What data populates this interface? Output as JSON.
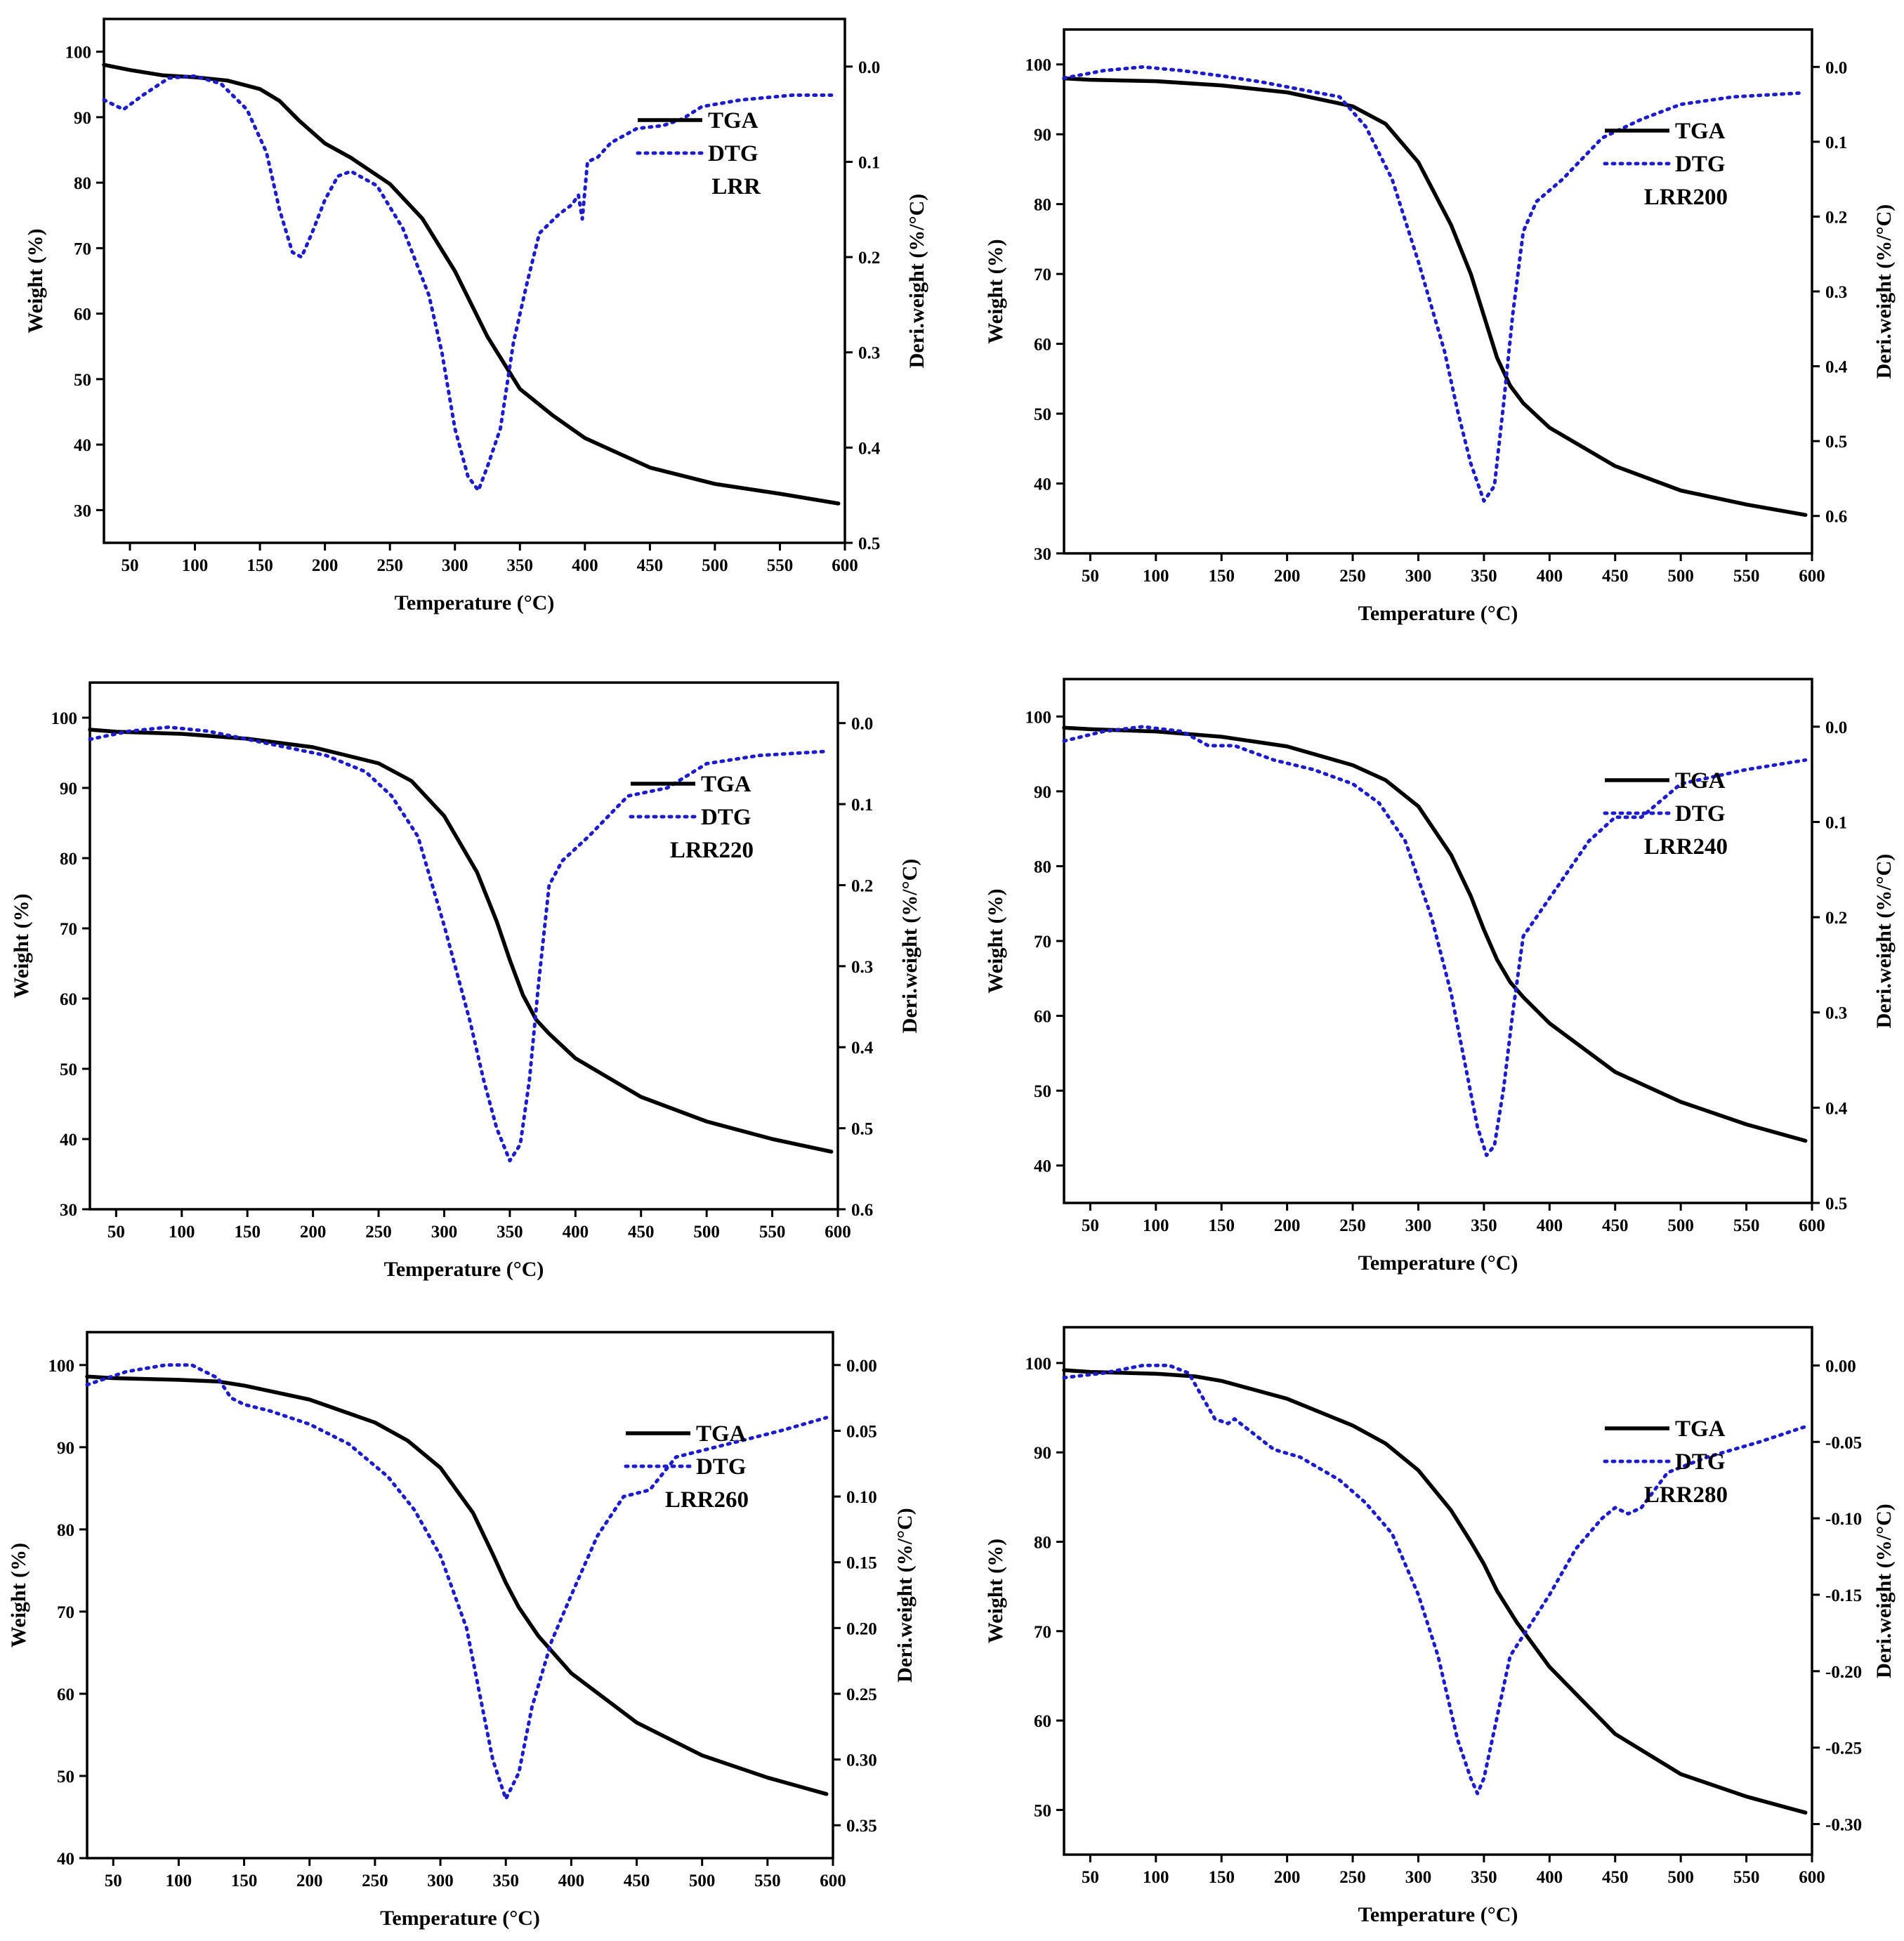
{
  "colors": {
    "tga": "#000000",
    "dtg": "#1c1ccc",
    "axis": "#000000"
  },
  "chart_data": [
    {
      "type": "line",
      "sample": "LRR",
      "xlabel": "Temperature (°C)",
      "ylabel": "Weight (%)",
      "y2label": "Deri.weight (%/°C)",
      "xlim": [
        30,
        600
      ],
      "ylim": [
        25,
        105
      ],
      "y2lim": [
        0.5,
        -0.05
      ],
      "xticks": [
        50,
        100,
        150,
        200,
        250,
        300,
        350,
        400,
        450,
        500,
        550,
        600
      ],
      "yticks": [
        30,
        40,
        50,
        60,
        70,
        80,
        90,
        100
      ],
      "y2ticks": [
        0.0,
        0.1,
        0.2,
        0.3,
        0.4,
        0.5
      ],
      "y2tick_labels": [
        "0.0",
        "0.1",
        "0.2",
        "0.3",
        "0.4",
        "0.5"
      ],
      "legend": {
        "tga": "TGA",
        "dtg": "DTG",
        "sample_label": "LRR",
        "position": "top-right"
      },
      "series": [
        {
          "name": "TGA",
          "axis": "left",
          "style": "solid",
          "x": [
            30,
            50,
            75,
            100,
            125,
            150,
            165,
            180,
            200,
            220,
            250,
            275,
            300,
            325,
            350,
            375,
            400,
            450,
            500,
            550,
            595
          ],
          "y": [
            98,
            97.2,
            96.4,
            96.1,
            95.6,
            94.3,
            92.5,
            89.5,
            86,
            83.8,
            79.8,
            74.5,
            66.5,
            56.5,
            48.5,
            44.5,
            41,
            36.5,
            34,
            32.5,
            31
          ]
        },
        {
          "name": "DTG",
          "axis": "right",
          "style": "dotted",
          "x": [
            30,
            45,
            60,
            80,
            100,
            120,
            140,
            155,
            165,
            175,
            182,
            190,
            200,
            210,
            220,
            240,
            260,
            280,
            290,
            300,
            310,
            318,
            325,
            335,
            345,
            355,
            365,
            380,
            390,
            395,
            398,
            402,
            410,
            420,
            440,
            460,
            475,
            490,
            520,
            560,
            590
          ],
          "y": [
            0.035,
            0.045,
            0.03,
            0.012,
            0.01,
            0.018,
            0.045,
            0.09,
            0.15,
            0.195,
            0.2,
            0.175,
            0.14,
            0.115,
            0.11,
            0.125,
            0.17,
            0.24,
            0.3,
            0.38,
            0.43,
            0.445,
            0.42,
            0.38,
            0.29,
            0.23,
            0.175,
            0.155,
            0.145,
            0.135,
            0.16,
            0.1,
            0.095,
            0.08,
            0.065,
            0.062,
            0.055,
            0.042,
            0.035,
            0.03,
            0.03
          ]
        }
      ]
    },
    {
      "type": "line",
      "sample": "LRR200",
      "xlabel": "Temperature (°C)",
      "ylabel": "Weight (%)",
      "y2label": "Deri.weight (%/°C)",
      "xlim": [
        30,
        600
      ],
      "ylim": [
        30,
        105
      ],
      "y2lim": [
        0.65,
        -0.05
      ],
      "xticks": [
        50,
        100,
        150,
        200,
        250,
        300,
        350,
        400,
        450,
        500,
        550,
        600
      ],
      "yticks": [
        30,
        40,
        50,
        60,
        70,
        80,
        90,
        100
      ],
      "y2ticks": [
        0.0,
        0.1,
        0.2,
        0.3,
        0.4,
        0.5,
        0.6
      ],
      "y2tick_labels": [
        "0.0",
        "0.1",
        "0.2",
        "0.3",
        "0.4",
        "0.5",
        "0.6"
      ],
      "legend": {
        "tga": "TGA",
        "dtg": "DTG",
        "sample_label": "LRR200",
        "position": "top-right"
      },
      "series": [
        {
          "name": "TGA",
          "axis": "left",
          "style": "solid",
          "x": [
            30,
            50,
            100,
            150,
            200,
            250,
            275,
            300,
            325,
            340,
            350,
            360,
            370,
            380,
            400,
            450,
            500,
            550,
            595
          ],
          "y": [
            98,
            97.8,
            97.6,
            97,
            96,
            94,
            91.5,
            86,
            77,
            70,
            64,
            58,
            54,
            51.5,
            48,
            42.5,
            39,
            37,
            35.5
          ]
        },
        {
          "name": "DTG",
          "axis": "right",
          "style": "dotted",
          "x": [
            30,
            60,
            90,
            120,
            150,
            180,
            210,
            240,
            260,
            280,
            300,
            320,
            330,
            340,
            350,
            358,
            365,
            372,
            380,
            390,
            410,
            440,
            470,
            500,
            540,
            590
          ],
          "y": [
            0.015,
            0.005,
            0,
            0.005,
            0.012,
            0.02,
            0.03,
            0.04,
            0.08,
            0.15,
            0.26,
            0.38,
            0.46,
            0.53,
            0.58,
            0.56,
            0.45,
            0.33,
            0.22,
            0.18,
            0.15,
            0.095,
            0.07,
            0.05,
            0.04,
            0.035
          ]
        }
      ]
    },
    {
      "type": "line",
      "sample": "LRR220",
      "xlabel": "Temperature (°C)",
      "ylabel": "Weight (%)",
      "y2label": "Deri.weight (%/°C)",
      "xlim": [
        30,
        600
      ],
      "ylim": [
        30,
        105
      ],
      "y2lim": [
        0.6,
        -0.05
      ],
      "xticks": [
        50,
        100,
        150,
        200,
        250,
        300,
        350,
        400,
        450,
        500,
        550,
        600
      ],
      "yticks": [
        30,
        40,
        50,
        60,
        70,
        80,
        90,
        100
      ],
      "y2ticks": [
        0.0,
        0.1,
        0.2,
        0.3,
        0.4,
        0.5,
        0.6
      ],
      "y2tick_labels": [
        "0.0",
        "0.1",
        "0.2",
        "0.3",
        "0.4",
        "0.5",
        "0.6"
      ],
      "legend": {
        "tga": "TGA",
        "dtg": "DTG",
        "sample_label": "LRR220",
        "position": "top-right"
      },
      "series": [
        {
          "name": "TGA",
          "axis": "left",
          "style": "solid",
          "x": [
            30,
            50,
            100,
            150,
            200,
            250,
            275,
            300,
            325,
            340,
            350,
            360,
            370,
            380,
            400,
            450,
            500,
            550,
            595
          ],
          "y": [
            98.3,
            98,
            97.7,
            97,
            95.8,
            93.5,
            91,
            86,
            78,
            71,
            65.5,
            60.5,
            57,
            55,
            51.5,
            46,
            42.5,
            40,
            38.2
          ]
        },
        {
          "name": "DTG",
          "axis": "right",
          "style": "dotted",
          "x": [
            30,
            60,
            90,
            120,
            150,
            180,
            210,
            240,
            260,
            280,
            300,
            320,
            330,
            340,
            350,
            358,
            365,
            372,
            380,
            390,
            410,
            440,
            470,
            500,
            540,
            590
          ],
          "y": [
            0.02,
            0.01,
            0.005,
            0.01,
            0.02,
            0.03,
            0.04,
            0.06,
            0.09,
            0.14,
            0.25,
            0.37,
            0.44,
            0.5,
            0.54,
            0.52,
            0.44,
            0.32,
            0.2,
            0.17,
            0.14,
            0.09,
            0.08,
            0.05,
            0.04,
            0.035
          ]
        }
      ]
    },
    {
      "type": "line",
      "sample": "LRR240",
      "xlabel": "Temperature (°C)",
      "ylabel": "Weight (%)",
      "y2label": "Deri.weight (%/°C)",
      "xlim": [
        30,
        600
      ],
      "ylim": [
        35,
        105
      ],
      "y2lim": [
        0.5,
        -0.05
      ],
      "xticks": [
        50,
        100,
        150,
        200,
        250,
        300,
        350,
        400,
        450,
        500,
        550,
        600
      ],
      "yticks": [
        40,
        50,
        60,
        70,
        80,
        90,
        100
      ],
      "y2ticks": [
        0.0,
        0.1,
        0.2,
        0.3,
        0.4,
        0.5
      ],
      "y2tick_labels": [
        "0.0",
        "0.1",
        "0.2",
        "0.3",
        "0.4",
        "0.5"
      ],
      "legend": {
        "tga": "TGA",
        "dtg": "DTG",
        "sample_label": "LRR240",
        "position": "top-right"
      },
      "series": [
        {
          "name": "TGA",
          "axis": "left",
          "style": "solid",
          "x": [
            30,
            50,
            100,
            150,
            200,
            250,
            275,
            300,
            325,
            340,
            350,
            360,
            370,
            380,
            400,
            450,
            500,
            550,
            595
          ],
          "y": [
            98.5,
            98.3,
            98,
            97.3,
            96,
            93.5,
            91.5,
            88,
            81.5,
            76,
            71.5,
            67.5,
            64.5,
            62.5,
            59,
            52.5,
            48.5,
            45.5,
            43.3
          ]
        },
        {
          "name": "DTG",
          "axis": "right",
          "style": "dotted",
          "x": [
            30,
            60,
            90,
            120,
            140,
            160,
            190,
            220,
            250,
            270,
            290,
            310,
            325,
            335,
            345,
            352,
            358,
            365,
            372,
            380,
            400,
            430,
            450,
            470,
            500,
            550,
            595
          ],
          "y": [
            0.015,
            0.005,
            0,
            0.005,
            0.02,
            0.02,
            0.035,
            0.045,
            0.06,
            0.08,
            0.12,
            0.2,
            0.28,
            0.35,
            0.42,
            0.45,
            0.44,
            0.38,
            0.3,
            0.22,
            0.18,
            0.12,
            0.095,
            0.095,
            0.06,
            0.045,
            0.035
          ]
        }
      ]
    },
    {
      "type": "line",
      "sample": "LRR260",
      "xlabel": "Temperature (°C)",
      "ylabel": "Weight (%)",
      "y2label": "Deri.weight (%/°C)",
      "xlim": [
        30,
        600
      ],
      "ylim": [
        40,
        104
      ],
      "y2lim": [
        0.375,
        -0.025
      ],
      "xticks": [
        50,
        100,
        150,
        200,
        250,
        300,
        350,
        400,
        450,
        500,
        550,
        600
      ],
      "yticks": [
        40,
        50,
        60,
        70,
        80,
        90,
        100
      ],
      "y2ticks": [
        0.0,
        0.05,
        0.1,
        0.15,
        0.2,
        0.25,
        0.3,
        0.35
      ],
      "y2tick_labels": [
        "0.00",
        "0.05",
        "0.10",
        "0.15",
        "0.20",
        "0.25",
        "0.30",
        "0.35"
      ],
      "legend": {
        "tga": "TGA",
        "dtg": "DTG",
        "sample_label": "LRR260",
        "position": "top-right"
      },
      "series": [
        {
          "name": "TGA",
          "axis": "left",
          "style": "solid",
          "x": [
            30,
            50,
            100,
            130,
            150,
            200,
            250,
            275,
            300,
            325,
            340,
            350,
            360,
            375,
            400,
            450,
            500,
            550,
            595
          ],
          "y": [
            98.6,
            98.4,
            98.2,
            98,
            97.5,
            95.8,
            93,
            90.8,
            87.5,
            82,
            77,
            73.5,
            70.5,
            67,
            62.5,
            56.5,
            52.5,
            49.8,
            47.8
          ]
        },
        {
          "name": "DTG",
          "axis": "right",
          "style": "dotted",
          "x": [
            30,
            60,
            90,
            110,
            130,
            140,
            150,
            170,
            200,
            230,
            260,
            280,
            300,
            320,
            330,
            340,
            350,
            360,
            370,
            385,
            400,
            420,
            440,
            460,
            480,
            520,
            560,
            595
          ],
          "y": [
            0.015,
            0.005,
            0,
            0,
            0.01,
            0.025,
            0.03,
            0.035,
            0.045,
            0.06,
            0.085,
            0.11,
            0.145,
            0.2,
            0.25,
            0.3,
            0.33,
            0.31,
            0.26,
            0.21,
            0.175,
            0.13,
            0.1,
            0.095,
            0.07,
            0.06,
            0.05,
            0.04
          ]
        }
      ]
    },
    {
      "type": "line",
      "sample": "LRR280",
      "xlabel": "Temperature (°C)",
      "ylabel": "Weight (%)",
      "y2label": "Deri.weight (%/°C)",
      "xlim": [
        30,
        600
      ],
      "ylim": [
        45,
        104
      ],
      "y2lim": [
        -0.32,
        0.025
      ],
      "xticks": [
        50,
        100,
        150,
        200,
        250,
        300,
        350,
        400,
        450,
        500,
        550,
        600
      ],
      "yticks": [
        50,
        60,
        70,
        80,
        90,
        100
      ],
      "y2ticks": [
        0.0,
        -0.05,
        -0.1,
        -0.15,
        -0.2,
        -0.25,
        -0.3
      ],
      "y2tick_labels": [
        "0.00",
        "-0.05",
        "-0.10",
        "-0.15",
        "-0.20",
        "-0.25",
        "-0.30"
      ],
      "legend": {
        "tga": "TGA",
        "dtg": "DTG",
        "sample_label": "LRR280",
        "position": "top-right"
      },
      "series": [
        {
          "name": "TGA",
          "axis": "left",
          "style": "solid",
          "x": [
            30,
            50,
            100,
            130,
            150,
            200,
            250,
            275,
            300,
            325,
            340,
            350,
            360,
            375,
            400,
            450,
            500,
            550,
            595
          ],
          "y": [
            99.2,
            99,
            98.8,
            98.5,
            98,
            96,
            93,
            91,
            88,
            83.5,
            80,
            77.5,
            74.5,
            71,
            66,
            58.5,
            54,
            51.5,
            49.7
          ]
        },
        {
          "name": "DTG",
          "axis": "right",
          "style": "dotted",
          "x": [
            30,
            60,
            90,
            110,
            125,
            135,
            145,
            155,
            160,
            175,
            190,
            210,
            240,
            260,
            280,
            300,
            315,
            330,
            340,
            345,
            350,
            360,
            370,
            385,
            400,
            420,
            440,
            450,
            460,
            470,
            490,
            520,
            560,
            595
          ],
          "y": [
            -0.008,
            -0.005,
            0,
            0,
            -0.005,
            -0.02,
            -0.035,
            -0.038,
            -0.035,
            -0.045,
            -0.055,
            -0.06,
            -0.075,
            -0.09,
            -0.11,
            -0.15,
            -0.19,
            -0.245,
            -0.27,
            -0.28,
            -0.27,
            -0.23,
            -0.19,
            -0.17,
            -0.15,
            -0.12,
            -0.1,
            -0.093,
            -0.097,
            -0.093,
            -0.07,
            -0.06,
            -0.05,
            -0.04
          ]
        }
      ]
    }
  ]
}
